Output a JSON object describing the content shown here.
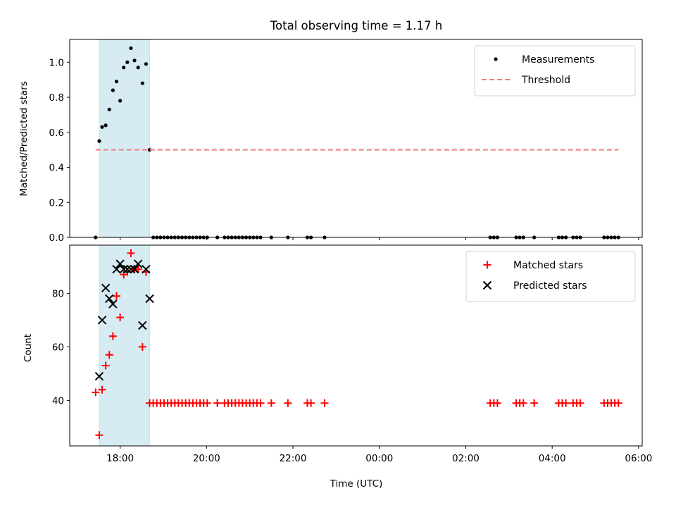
{
  "chart_data": [
    {
      "type": "scatter",
      "title": "Total observing time = 1.17 h",
      "xlabel": "",
      "ylabel": "Matched/Predicted stars",
      "x_unit": "hours since 00:00 UTC of the first night",
      "xlim": [
        "16:50",
        "06:05"
      ],
      "ylim": [
        0,
        1.13
      ],
      "yticks": [
        "0.0",
        "0.2",
        "0.4",
        "0.6",
        "0.8",
        "1.0"
      ],
      "xtick_labels_shown": false,
      "highlight_span": {
        "x": [
          "17:31",
          "18:41"
        ],
        "color": "#add8e6"
      },
      "legend_position": "upper right",
      "series": [
        {
          "name": "Measurements",
          "marker": "dot",
          "color": "#000000",
          "points": [
            [
              "17:26",
              0.0
            ],
            [
              "17:31",
              0.55
            ],
            [
              "17:35",
              0.63
            ],
            [
              "17:40",
              0.64
            ],
            [
              "17:45",
              0.73
            ],
            [
              "17:50",
              0.84
            ],
            [
              "17:55",
              0.89
            ],
            [
              "18:00",
              0.78
            ],
            [
              "18:05",
              0.97
            ],
            [
              "18:10",
              1.0
            ],
            [
              "18:15",
              1.08
            ],
            [
              "18:20",
              1.01
            ],
            [
              "18:25",
              0.97
            ],
            [
              "18:31",
              0.88
            ],
            [
              "18:36",
              0.99
            ],
            [
              "18:41",
              0.5
            ],
            [
              "18:46",
              0.0
            ],
            [
              "18:51",
              0.0
            ],
            [
              "18:56",
              0.0
            ],
            [
              "19:01",
              0.0
            ],
            [
              "19:06",
              0.0
            ],
            [
              "19:11",
              0.0
            ],
            [
              "19:16",
              0.0
            ],
            [
              "19:21",
              0.0
            ],
            [
              "19:26",
              0.0
            ],
            [
              "19:31",
              0.0
            ],
            [
              "19:36",
              0.0
            ],
            [
              "19:41",
              0.0
            ],
            [
              "19:46",
              0.0
            ],
            [
              "19:51",
              0.0
            ],
            [
              "19:56",
              0.0
            ],
            [
              "20:01",
              0.0
            ],
            [
              "20:15",
              0.0
            ],
            [
              "20:25",
              0.0
            ],
            [
              "20:30",
              0.0
            ],
            [
              "20:35",
              0.0
            ],
            [
              "20:40",
              0.0
            ],
            [
              "20:45",
              0.0
            ],
            [
              "20:50",
              0.0
            ],
            [
              "20:55",
              0.0
            ],
            [
              "21:00",
              0.0
            ],
            [
              "21:05",
              0.0
            ],
            [
              "21:10",
              0.0
            ],
            [
              "21:15",
              0.0
            ],
            [
              "21:30",
              0.0
            ],
            [
              "21:53",
              0.0
            ],
            [
              "22:20",
              0.0
            ],
            [
              "22:25",
              0.0
            ],
            [
              "22:44",
              0.0
            ],
            [
              "02:34",
              0.0
            ],
            [
              "02:39",
              0.0
            ],
            [
              "02:44",
              0.0
            ],
            [
              "03:10",
              0.0
            ],
            [
              "03:15",
              0.0
            ],
            [
              "03:20",
              0.0
            ],
            [
              "03:35",
              0.0
            ],
            [
              "04:09",
              0.0
            ],
            [
              "04:14",
              0.0
            ],
            [
              "04:19",
              0.0
            ],
            [
              "04:29",
              0.0
            ],
            [
              "04:34",
              0.0
            ],
            [
              "04:39",
              0.0
            ],
            [
              "05:12",
              0.0
            ],
            [
              "05:17",
              0.0
            ],
            [
              "05:22",
              0.0
            ],
            [
              "05:27",
              0.0
            ],
            [
              "05:32",
              0.0
            ]
          ]
        },
        {
          "name": "Threshold",
          "style": "dashed",
          "color": "#f08080",
          "points": [
            [
              "17:26",
              0.5
            ],
            [
              "05:32",
              0.5
            ]
          ]
        }
      ]
    },
    {
      "type": "scatter",
      "title": "",
      "xlabel": "Time (UTC)",
      "ylabel": "Count",
      "x_unit": "hours since 00:00 UTC of the first night",
      "xlim": [
        "16:50",
        "06:05"
      ],
      "ylim": [
        23,
        98
      ],
      "yticks": [
        "40",
        "60",
        "80"
      ],
      "xticks": [
        "18:00",
        "20:00",
        "22:00",
        "00:00",
        "02:00",
        "04:00",
        "06:00"
      ],
      "highlight_span": {
        "x": [
          "17:31",
          "18:41"
        ],
        "color": "#add8e6"
      },
      "legend_position": "upper right",
      "series": [
        {
          "name": "Matched stars",
          "marker": "plus",
          "color": "#ff0000",
          "points": [
            [
              "17:26",
              43
            ],
            [
              "17:31",
              27
            ],
            [
              "17:35",
              44
            ],
            [
              "17:40",
              53
            ],
            [
              "17:45",
              57
            ],
            [
              "17:50",
              64
            ],
            [
              "17:55",
              79
            ],
            [
              "18:00",
              71
            ],
            [
              "18:05",
              87
            ],
            [
              "18:10",
              88
            ],
            [
              "18:15",
              95
            ],
            [
              "18:20",
              89
            ],
            [
              "18:25",
              89
            ],
            [
              "18:31",
              60
            ],
            [
              "18:36",
              88
            ],
            [
              "18:41",
              39
            ],
            [
              "18:46",
              39
            ],
            [
              "18:51",
              39
            ],
            [
              "18:56",
              39
            ],
            [
              "19:01",
              39
            ],
            [
              "19:06",
              39
            ],
            [
              "19:11",
              39
            ],
            [
              "19:16",
              39
            ],
            [
              "19:21",
              39
            ],
            [
              "19:26",
              39
            ],
            [
              "19:31",
              39
            ],
            [
              "19:36",
              39
            ],
            [
              "19:41",
              39
            ],
            [
              "19:46",
              39
            ],
            [
              "19:51",
              39
            ],
            [
              "19:56",
              39
            ],
            [
              "20:01",
              39
            ],
            [
              "20:15",
              39
            ],
            [
              "20:25",
              39
            ],
            [
              "20:30",
              39
            ],
            [
              "20:35",
              39
            ],
            [
              "20:40",
              39
            ],
            [
              "20:45",
              39
            ],
            [
              "20:50",
              39
            ],
            [
              "20:55",
              39
            ],
            [
              "21:00",
              39
            ],
            [
              "21:05",
              39
            ],
            [
              "21:10",
              39
            ],
            [
              "21:15",
              39
            ],
            [
              "21:30",
              39
            ],
            [
              "21:53",
              39
            ],
            [
              "22:20",
              39
            ],
            [
              "22:25",
              39
            ],
            [
              "22:44",
              39
            ],
            [
              "02:34",
              39
            ],
            [
              "02:39",
              39
            ],
            [
              "02:44",
              39
            ],
            [
              "03:10",
              39
            ],
            [
              "03:15",
              39
            ],
            [
              "03:20",
              39
            ],
            [
              "03:35",
              39
            ],
            [
              "04:09",
              39
            ],
            [
              "04:14",
              39
            ],
            [
              "04:19",
              39
            ],
            [
              "04:29",
              39
            ],
            [
              "04:34",
              39
            ],
            [
              "04:39",
              39
            ],
            [
              "05:12",
              39
            ],
            [
              "05:17",
              39
            ],
            [
              "05:22",
              39
            ],
            [
              "05:27",
              39
            ],
            [
              "05:32",
              39
            ]
          ]
        },
        {
          "name": "Predicted stars",
          "marker": "x",
          "color": "#000000",
          "points": [
            [
              "17:31",
              49
            ],
            [
              "17:35",
              70
            ],
            [
              "17:40",
              82
            ],
            [
              "17:45",
              78
            ],
            [
              "17:50",
              76
            ],
            [
              "17:55",
              89
            ],
            [
              "18:00",
              91
            ],
            [
              "18:05",
              89
            ],
            [
              "18:10",
              89
            ],
            [
              "18:15",
              89
            ],
            [
              "18:20",
              89
            ],
            [
              "18:25",
              91
            ],
            [
              "18:31",
              68
            ],
            [
              "18:36",
              89
            ],
            [
              "18:41",
              78
            ]
          ]
        }
      ]
    }
  ]
}
